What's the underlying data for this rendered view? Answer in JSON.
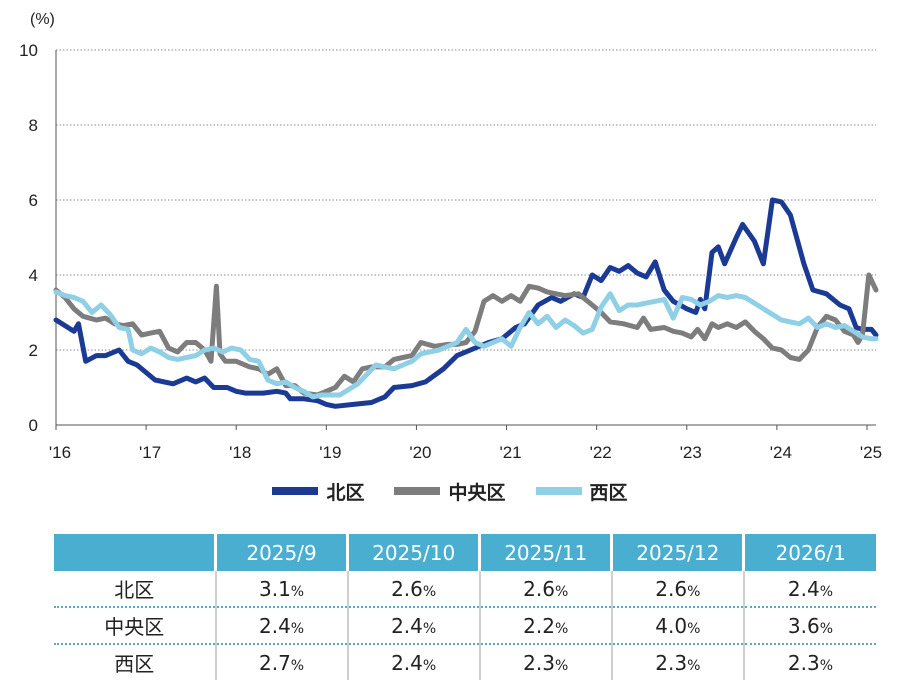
{
  "chart_data": {
    "type": "line",
    "ylabel": "(%)",
    "ylim": [
      0,
      10
    ],
    "yticks": [
      "0",
      "2",
      "4",
      "6",
      "8",
      "10"
    ],
    "xlim": [
      2016.0,
      2025.1
    ],
    "xticks": [
      "'16",
      "'17",
      "'18",
      "'19",
      "'20",
      "'21",
      "'22",
      "'23",
      "'24",
      "'25"
    ],
    "grid": true,
    "legend_position": "bottom",
    "series": [
      {
        "name": "北区",
        "color": "#1b3a93",
        "points": [
          [
            2016.0,
            2.8
          ],
          [
            2016.1,
            2.65
          ],
          [
            2016.2,
            2.5
          ],
          [
            2016.25,
            2.7
          ],
          [
            2016.33,
            1.7
          ],
          [
            2016.45,
            1.85
          ],
          [
            2016.55,
            1.85
          ],
          [
            2016.7,
            2.0
          ],
          [
            2016.8,
            1.7
          ],
          [
            2016.9,
            1.6
          ],
          [
            2017.0,
            1.4
          ],
          [
            2017.1,
            1.2
          ],
          [
            2017.3,
            1.1
          ],
          [
            2017.45,
            1.25
          ],
          [
            2017.55,
            1.15
          ],
          [
            2017.65,
            1.25
          ],
          [
            2017.75,
            1.0
          ],
          [
            2017.9,
            1.0
          ],
          [
            2018.0,
            0.9
          ],
          [
            2018.1,
            0.85
          ],
          [
            2018.3,
            0.85
          ],
          [
            2018.45,
            0.9
          ],
          [
            2018.55,
            0.85
          ],
          [
            2018.6,
            0.7
          ],
          [
            2018.75,
            0.7
          ],
          [
            2018.9,
            0.65
          ],
          [
            2019.0,
            0.55
          ],
          [
            2019.1,
            0.5
          ],
          [
            2019.3,
            0.55
          ],
          [
            2019.5,
            0.6
          ],
          [
            2019.65,
            0.75
          ],
          [
            2019.75,
            1.0
          ],
          [
            2019.95,
            1.05
          ],
          [
            2020.1,
            1.15
          ],
          [
            2020.3,
            1.5
          ],
          [
            2020.45,
            1.85
          ],
          [
            2020.6,
            2.0
          ],
          [
            2020.8,
            2.2
          ],
          [
            2020.95,
            2.3
          ],
          [
            2021.1,
            2.6
          ],
          [
            2021.2,
            2.7
          ],
          [
            2021.35,
            3.2
          ],
          [
            2021.5,
            3.4
          ],
          [
            2021.6,
            3.3
          ],
          [
            2021.75,
            3.5
          ],
          [
            2021.85,
            3.4
          ],
          [
            2021.95,
            4.0
          ],
          [
            2022.05,
            3.85
          ],
          [
            2022.15,
            4.2
          ],
          [
            2022.25,
            4.1
          ],
          [
            2022.35,
            4.25
          ],
          [
            2022.45,
            4.05
          ],
          [
            2022.55,
            3.95
          ],
          [
            2022.65,
            4.35
          ],
          [
            2022.75,
            3.6
          ],
          [
            2022.85,
            3.3
          ],
          [
            2023.0,
            3.1
          ],
          [
            2023.1,
            3.0
          ],
          [
            2023.15,
            3.35
          ],
          [
            2023.2,
            3.1
          ],
          [
            2023.28,
            4.6
          ],
          [
            2023.35,
            4.75
          ],
          [
            2023.42,
            4.3
          ],
          [
            2023.55,
            5.0
          ],
          [
            2023.62,
            5.35
          ],
          [
            2023.75,
            4.9
          ],
          [
            2023.85,
            4.3
          ],
          [
            2023.95,
            6.0
          ],
          [
            2024.05,
            5.95
          ],
          [
            2024.15,
            5.6
          ],
          [
            2024.3,
            4.3
          ],
          [
            2024.4,
            3.6
          ],
          [
            2024.55,
            3.5
          ],
          [
            2024.7,
            3.2
          ],
          [
            2024.8,
            3.1
          ],
          [
            2024.88,
            2.6
          ],
          [
            2024.95,
            2.55
          ],
          [
            2025.05,
            2.55
          ],
          [
            2025.1,
            2.4
          ]
        ]
      },
      {
        "name": "中央区",
        "color": "#7d7d7d",
        "points": [
          [
            2016.0,
            3.6
          ],
          [
            2016.1,
            3.4
          ],
          [
            2016.2,
            3.1
          ],
          [
            2016.3,
            2.9
          ],
          [
            2016.45,
            2.8
          ],
          [
            2016.55,
            2.85
          ],
          [
            2016.65,
            2.7
          ],
          [
            2016.75,
            2.65
          ],
          [
            2016.85,
            2.7
          ],
          [
            2016.95,
            2.4
          ],
          [
            2017.05,
            2.45
          ],
          [
            2017.15,
            2.5
          ],
          [
            2017.25,
            2.05
          ],
          [
            2017.35,
            1.95
          ],
          [
            2017.45,
            2.2
          ],
          [
            2017.55,
            2.2
          ],
          [
            2017.65,
            2.0
          ],
          [
            2017.72,
            1.7
          ],
          [
            2017.78,
            3.7
          ],
          [
            2017.82,
            1.9
          ],
          [
            2017.88,
            1.7
          ],
          [
            2018.0,
            1.7
          ],
          [
            2018.15,
            1.55
          ],
          [
            2018.25,
            1.5
          ],
          [
            2018.35,
            1.35
          ],
          [
            2018.45,
            1.5
          ],
          [
            2018.55,
            1.05
          ],
          [
            2018.65,
            1.05
          ],
          [
            2018.75,
            0.85
          ],
          [
            2018.9,
            0.8
          ],
          [
            2019.0,
            0.9
          ],
          [
            2019.1,
            1.0
          ],
          [
            2019.2,
            1.3
          ],
          [
            2019.3,
            1.15
          ],
          [
            2019.4,
            1.5
          ],
          [
            2019.5,
            1.55
          ],
          [
            2019.65,
            1.55
          ],
          [
            2019.75,
            1.75
          ],
          [
            2019.85,
            1.8
          ],
          [
            2019.95,
            1.85
          ],
          [
            2020.05,
            2.2
          ],
          [
            2020.2,
            2.1
          ],
          [
            2020.35,
            2.15
          ],
          [
            2020.45,
            2.15
          ],
          [
            2020.55,
            2.2
          ],
          [
            2020.65,
            2.5
          ],
          [
            2020.75,
            3.3
          ],
          [
            2020.85,
            3.45
          ],
          [
            2020.95,
            3.3
          ],
          [
            2021.05,
            3.45
          ],
          [
            2021.15,
            3.3
          ],
          [
            2021.25,
            3.7
          ],
          [
            2021.35,
            3.65
          ],
          [
            2021.45,
            3.55
          ],
          [
            2021.55,
            3.5
          ],
          [
            2021.65,
            3.45
          ],
          [
            2021.8,
            3.5
          ],
          [
            2021.95,
            3.2
          ],
          [
            2022.05,
            3.0
          ],
          [
            2022.15,
            2.75
          ],
          [
            2022.3,
            2.7
          ],
          [
            2022.45,
            2.6
          ],
          [
            2022.52,
            2.85
          ],
          [
            2022.6,
            2.55
          ],
          [
            2022.75,
            2.6
          ],
          [
            2022.85,
            2.5
          ],
          [
            2022.95,
            2.45
          ],
          [
            2023.05,
            2.35
          ],
          [
            2023.12,
            2.55
          ],
          [
            2023.2,
            2.3
          ],
          [
            2023.28,
            2.7
          ],
          [
            2023.35,
            2.6
          ],
          [
            2023.45,
            2.7
          ],
          [
            2023.55,
            2.6
          ],
          [
            2023.65,
            2.75
          ],
          [
            2023.75,
            2.5
          ],
          [
            2023.85,
            2.3
          ],
          [
            2023.95,
            2.05
          ],
          [
            2024.05,
            2.0
          ],
          [
            2024.15,
            1.8
          ],
          [
            2024.25,
            1.75
          ],
          [
            2024.35,
            2.0
          ],
          [
            2024.45,
            2.6
          ],
          [
            2024.55,
            2.9
          ],
          [
            2024.65,
            2.8
          ],
          [
            2024.75,
            2.5
          ],
          [
            2024.85,
            2.4
          ],
          [
            2024.9,
            2.2
          ],
          [
            2024.95,
            2.4
          ],
          [
            2025.02,
            4.0
          ],
          [
            2025.1,
            3.6
          ]
        ]
      },
      {
        "name": "西区",
        "color": "#8fd0e6",
        "points": [
          [
            2016.0,
            3.55
          ],
          [
            2016.1,
            3.45
          ],
          [
            2016.2,
            3.4
          ],
          [
            2016.3,
            3.3
          ],
          [
            2016.4,
            3.0
          ],
          [
            2016.5,
            3.2
          ],
          [
            2016.6,
            2.95
          ],
          [
            2016.7,
            2.6
          ],
          [
            2016.8,
            2.55
          ],
          [
            2016.85,
            2.0
          ],
          [
            2016.95,
            1.9
          ],
          [
            2017.05,
            2.05
          ],
          [
            2017.15,
            1.95
          ],
          [
            2017.25,
            1.8
          ],
          [
            2017.35,
            1.75
          ],
          [
            2017.45,
            1.8
          ],
          [
            2017.55,
            1.85
          ],
          [
            2017.65,
            2.0
          ],
          [
            2017.75,
            2.05
          ],
          [
            2017.85,
            1.95
          ],
          [
            2017.95,
            2.05
          ],
          [
            2018.05,
            2.0
          ],
          [
            2018.15,
            1.75
          ],
          [
            2018.25,
            1.7
          ],
          [
            2018.35,
            1.2
          ],
          [
            2018.45,
            1.1
          ],
          [
            2018.55,
            1.15
          ],
          [
            2018.65,
            1.0
          ],
          [
            2018.75,
            0.9
          ],
          [
            2018.85,
            0.75
          ],
          [
            2018.95,
            0.8
          ],
          [
            2019.05,
            0.8
          ],
          [
            2019.15,
            0.8
          ],
          [
            2019.25,
            0.95
          ],
          [
            2019.35,
            1.1
          ],
          [
            2019.45,
            1.35
          ],
          [
            2019.55,
            1.6
          ],
          [
            2019.65,
            1.55
          ],
          [
            2019.75,
            1.5
          ],
          [
            2019.85,
            1.6
          ],
          [
            2019.95,
            1.7
          ],
          [
            2020.05,
            1.9
          ],
          [
            2020.15,
            1.95
          ],
          [
            2020.25,
            2.0
          ],
          [
            2020.35,
            2.1
          ],
          [
            2020.45,
            2.2
          ],
          [
            2020.55,
            2.55
          ],
          [
            2020.65,
            2.2
          ],
          [
            2020.75,
            2.1
          ],
          [
            2020.85,
            2.2
          ],
          [
            2020.95,
            2.3
          ],
          [
            2021.05,
            2.1
          ],
          [
            2021.15,
            2.6
          ],
          [
            2021.25,
            3.0
          ],
          [
            2021.35,
            2.7
          ],
          [
            2021.45,
            2.9
          ],
          [
            2021.55,
            2.6
          ],
          [
            2021.65,
            2.8
          ],
          [
            2021.75,
            2.65
          ],
          [
            2021.85,
            2.45
          ],
          [
            2021.95,
            2.55
          ],
          [
            2022.05,
            3.15
          ],
          [
            2022.15,
            3.5
          ],
          [
            2022.25,
            3.05
          ],
          [
            2022.35,
            3.2
          ],
          [
            2022.45,
            3.2
          ],
          [
            2022.55,
            3.25
          ],
          [
            2022.65,
            3.3
          ],
          [
            2022.75,
            3.35
          ],
          [
            2022.85,
            2.85
          ],
          [
            2022.95,
            3.4
          ],
          [
            2023.05,
            3.35
          ],
          [
            2023.15,
            3.2
          ],
          [
            2023.25,
            3.3
          ],
          [
            2023.35,
            3.45
          ],
          [
            2023.45,
            3.4
          ],
          [
            2023.55,
            3.45
          ],
          [
            2023.65,
            3.4
          ],
          [
            2023.75,
            3.25
          ],
          [
            2023.85,
            3.1
          ],
          [
            2023.95,
            2.95
          ],
          [
            2024.05,
            2.8
          ],
          [
            2024.15,
            2.75
          ],
          [
            2024.25,
            2.7
          ],
          [
            2024.35,
            2.85
          ],
          [
            2024.45,
            2.6
          ],
          [
            2024.55,
            2.7
          ],
          [
            2024.65,
            2.6
          ],
          [
            2024.75,
            2.65
          ],
          [
            2024.85,
            2.5
          ],
          [
            2024.95,
            2.35
          ],
          [
            2025.05,
            2.3
          ],
          [
            2025.1,
            2.3
          ]
        ]
      }
    ]
  },
  "table": {
    "corner": "",
    "columns": [
      "2025/9",
      "2025/10",
      "2025/11",
      "2025/12",
      "2026/1"
    ],
    "unit": "%",
    "rows": [
      {
        "label": "北区",
        "values": [
          "3.1",
          "2.6",
          "2.6",
          "2.6",
          "2.4"
        ]
      },
      {
        "label": "中央区",
        "values": [
          "2.4",
          "2.4",
          "2.2",
          "4.0",
          "3.6"
        ]
      },
      {
        "label": "西区",
        "values": [
          "2.7",
          "2.4",
          "2.3",
          "2.3",
          "2.3"
        ]
      }
    ]
  }
}
